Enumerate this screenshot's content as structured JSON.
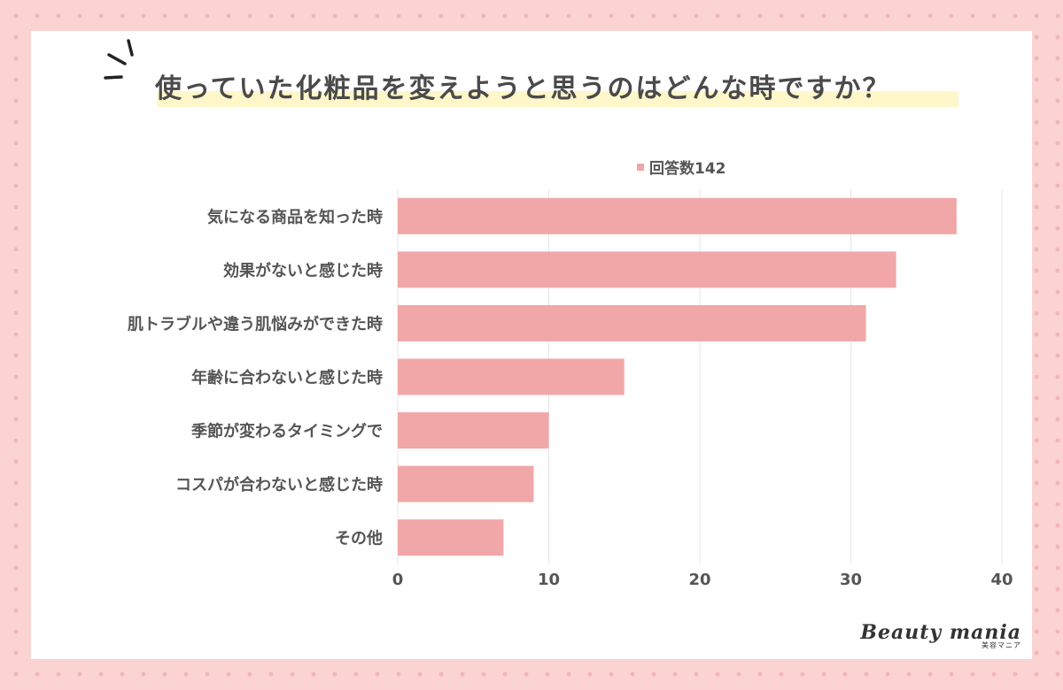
{
  "page": {
    "title": "使っていた化粧品を変えようと思うのはどんな時ですか？",
    "brand_name": "Beauty mania",
    "brand_sub": "美容マニア"
  },
  "colors": {
    "bar": "#f1a7a7",
    "grid": "#e6e6e6",
    "text": "#555555",
    "background": "#fbd3d3"
  },
  "chart_data": {
    "type": "bar",
    "orientation": "horizontal",
    "title": "使っていた化粧品を変えようと思うのはどんな時ですか？",
    "categories": [
      "気になる商品を知った時",
      "効果がないと感じた時",
      "肌トラブルや違う肌悩みができた時",
      "年齢に合わないと感じた時",
      "季節が変わるタイミングで",
      "コスパが合わないと感じた時",
      "その他"
    ],
    "series": [
      {
        "name": "回答数142",
        "values": [
          37,
          33,
          31,
          15,
          10,
          9,
          7
        ]
      }
    ],
    "xlim": [
      0,
      40
    ],
    "xticks": [
      0,
      10,
      20,
      30,
      40
    ],
    "grid": true,
    "legend": "top-center"
  }
}
